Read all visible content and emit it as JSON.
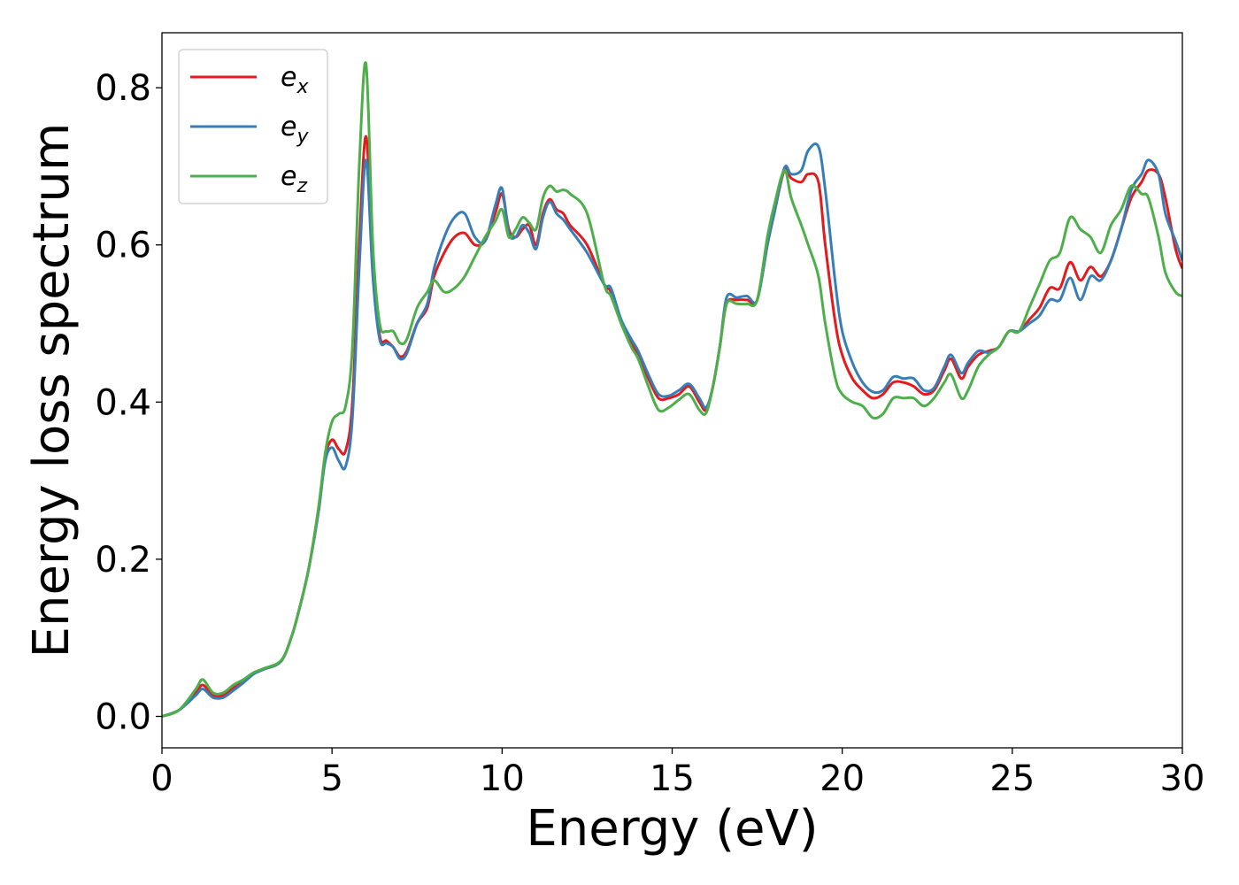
{
  "chart_data": {
    "type": "line",
    "title": "",
    "xlabel": "Energy (eV)",
    "ylabel": "Energy loss spectrum",
    "xlim": [
      0,
      30
    ],
    "ylim": [
      -0.04,
      0.87
    ],
    "xticks": [
      0,
      5,
      10,
      15,
      20,
      25,
      30
    ],
    "xtick_labels": [
      "0",
      "5",
      "10",
      "15",
      "20",
      "25",
      "30"
    ],
    "yticks": [
      0.0,
      0.2,
      0.4,
      0.6,
      0.8
    ],
    "ytick_labels": [
      "0.0",
      "0.2",
      "0.4",
      "0.6",
      "0.8"
    ],
    "grid": false,
    "legend_position": "top-left",
    "series": [
      {
        "name": "e_x",
        "legend_base": "e",
        "legend_sub": "x",
        "color": "#e41a1c",
        "x": [
          0,
          0.5,
          1.0,
          1.2,
          1.5,
          1.8,
          2.1,
          2.4,
          2.7,
          3.0,
          3.5,
          3.8,
          4.0,
          4.3,
          4.6,
          4.8,
          5.0,
          5.2,
          5.4,
          5.6,
          5.8,
          6.0,
          6.2,
          6.4,
          6.6,
          6.8,
          7.0,
          7.2,
          7.5,
          7.8,
          8.0,
          8.3,
          8.6,
          8.9,
          9.2,
          9.5,
          9.8,
          10.0,
          10.2,
          10.4,
          10.6,
          10.8,
          11.0,
          11.2,
          11.4,
          11.6,
          11.8,
          12.0,
          12.5,
          13.0,
          13.2,
          13.5,
          13.8,
          14.0,
          14.3,
          14.6,
          14.9,
          15.2,
          15.5,
          15.8,
          16.0,
          16.2,
          16.4,
          16.6,
          16.9,
          17.2,
          17.5,
          17.8,
          18.0,
          18.3,
          18.5,
          18.8,
          19.0,
          19.3,
          19.5,
          19.8,
          20.0,
          20.3,
          20.6,
          20.9,
          21.2,
          21.5,
          21.8,
          22.1,
          22.4,
          22.7,
          23.0,
          23.2,
          23.5,
          23.7,
          24.0,
          24.3,
          24.6,
          24.9,
          25.2,
          25.5,
          25.8,
          26.1,
          26.4,
          26.7,
          27.0,
          27.3,
          27.6,
          27.9,
          28.2,
          28.5,
          28.8,
          29.0,
          29.3,
          29.5,
          29.8,
          30.0
        ],
        "y": [
          0.0,
          0.008,
          0.03,
          0.04,
          0.027,
          0.027,
          0.036,
          0.045,
          0.055,
          0.06,
          0.07,
          0.1,
          0.13,
          0.185,
          0.26,
          0.33,
          0.352,
          0.34,
          0.338,
          0.4,
          0.6,
          0.738,
          0.58,
          0.485,
          0.478,
          0.47,
          0.458,
          0.465,
          0.5,
          0.52,
          0.56,
          0.59,
          0.61,
          0.615,
          0.6,
          0.605,
          0.64,
          0.665,
          0.62,
          0.61,
          0.62,
          0.625,
          0.6,
          0.64,
          0.658,
          0.645,
          0.64,
          0.625,
          0.6,
          0.55,
          0.54,
          0.5,
          0.475,
          0.46,
          0.43,
          0.405,
          0.405,
          0.41,
          0.42,
          0.4,
          0.39,
          0.42,
          0.47,
          0.525,
          0.53,
          0.53,
          0.53,
          0.6,
          0.64,
          0.695,
          0.685,
          0.68,
          0.69,
          0.68,
          0.6,
          0.5,
          0.46,
          0.43,
          0.415,
          0.405,
          0.41,
          0.425,
          0.425,
          0.42,
          0.41,
          0.415,
          0.44,
          0.455,
          0.43,
          0.445,
          0.46,
          0.465,
          0.47,
          0.49,
          0.49,
          0.505,
          0.52,
          0.545,
          0.545,
          0.578,
          0.555,
          0.572,
          0.56,
          0.58,
          0.62,
          0.66,
          0.68,
          0.695,
          0.69,
          0.66,
          0.595,
          0.57
        ]
      },
      {
        "name": "e_y",
        "legend_base": "e",
        "legend_sub": "y",
        "color": "#377eb8",
        "x": [
          0,
          0.5,
          1.0,
          1.2,
          1.5,
          1.8,
          2.1,
          2.4,
          2.7,
          3.0,
          3.5,
          3.8,
          4.0,
          4.3,
          4.6,
          4.8,
          5.0,
          5.2,
          5.4,
          5.6,
          5.8,
          6.0,
          6.2,
          6.4,
          6.6,
          6.8,
          7.0,
          7.2,
          7.5,
          7.8,
          8.0,
          8.3,
          8.6,
          8.9,
          9.2,
          9.5,
          9.8,
          10.0,
          10.2,
          10.4,
          10.6,
          10.8,
          11.0,
          11.2,
          11.4,
          11.6,
          11.8,
          12.0,
          12.5,
          13.0,
          13.2,
          13.5,
          13.8,
          14.0,
          14.3,
          14.6,
          14.9,
          15.2,
          15.5,
          15.8,
          16.0,
          16.2,
          16.4,
          16.6,
          16.9,
          17.2,
          17.5,
          17.8,
          18.0,
          18.3,
          18.5,
          18.8,
          19.0,
          19.3,
          19.5,
          19.8,
          20.0,
          20.3,
          20.6,
          20.9,
          21.2,
          21.5,
          21.8,
          22.1,
          22.4,
          22.7,
          23.0,
          23.2,
          23.5,
          23.7,
          24.0,
          24.3,
          24.6,
          24.9,
          25.2,
          25.5,
          25.8,
          26.1,
          26.4,
          26.7,
          27.0,
          27.3,
          27.6,
          27.9,
          28.2,
          28.5,
          28.8,
          29.0,
          29.3,
          29.5,
          29.8,
          30.0
        ],
        "y": [
          0.0,
          0.008,
          0.027,
          0.035,
          0.024,
          0.024,
          0.033,
          0.043,
          0.054,
          0.06,
          0.07,
          0.1,
          0.13,
          0.185,
          0.26,
          0.325,
          0.342,
          0.325,
          0.318,
          0.38,
          0.57,
          0.708,
          0.56,
          0.48,
          0.475,
          0.47,
          0.455,
          0.462,
          0.5,
          0.525,
          0.57,
          0.61,
          0.635,
          0.64,
          0.61,
          0.605,
          0.65,
          0.672,
          0.615,
          0.61,
          0.625,
          0.615,
          0.595,
          0.635,
          0.655,
          0.64,
          0.632,
          0.62,
          0.59,
          0.55,
          0.545,
          0.505,
          0.48,
          0.465,
          0.435,
          0.41,
          0.408,
          0.415,
          0.423,
          0.405,
          0.393,
          0.42,
          0.47,
          0.533,
          0.533,
          0.535,
          0.53,
          0.6,
          0.64,
          0.698,
          0.69,
          0.695,
          0.72,
          0.725,
          0.67,
          0.55,
          0.49,
          0.45,
          0.425,
          0.413,
          0.415,
          0.432,
          0.43,
          0.43,
          0.415,
          0.418,
          0.445,
          0.46,
          0.437,
          0.45,
          0.465,
          0.463,
          0.47,
          0.49,
          0.49,
          0.5,
          0.51,
          0.53,
          0.53,
          0.558,
          0.53,
          0.56,
          0.555,
          0.58,
          0.62,
          0.67,
          0.69,
          0.708,
          0.69,
          0.64,
          0.605,
          0.58
        ]
      },
      {
        "name": "e_z",
        "legend_base": "e",
        "legend_sub": "z",
        "color": "#4daf4a",
        "x": [
          0,
          0.5,
          1.0,
          1.2,
          1.5,
          1.8,
          2.1,
          2.4,
          2.7,
          3.0,
          3.5,
          3.8,
          4.0,
          4.3,
          4.6,
          4.8,
          5.0,
          5.2,
          5.4,
          5.6,
          5.8,
          6.0,
          6.2,
          6.4,
          6.6,
          6.8,
          7.0,
          7.2,
          7.5,
          7.8,
          8.0,
          8.3,
          8.6,
          8.9,
          9.2,
          9.5,
          9.8,
          10.0,
          10.2,
          10.4,
          10.6,
          10.8,
          11.0,
          11.2,
          11.4,
          11.6,
          11.8,
          12.0,
          12.5,
          13.0,
          13.2,
          13.5,
          13.8,
          14.0,
          14.3,
          14.6,
          14.9,
          15.2,
          15.5,
          15.8,
          16.0,
          16.2,
          16.4,
          16.6,
          16.9,
          17.2,
          17.5,
          17.8,
          18.0,
          18.3,
          18.5,
          18.8,
          19.0,
          19.3,
          19.5,
          19.8,
          20.0,
          20.3,
          20.6,
          20.9,
          21.2,
          21.5,
          21.8,
          22.1,
          22.4,
          22.7,
          23.0,
          23.2,
          23.5,
          23.7,
          24.0,
          24.3,
          24.6,
          24.9,
          25.2,
          25.5,
          25.8,
          26.1,
          26.4,
          26.7,
          27.0,
          27.3,
          27.6,
          27.9,
          28.2,
          28.5,
          28.8,
          29.0,
          29.3,
          29.5,
          29.8,
          30.0
        ],
        "y": [
          0.0,
          0.008,
          0.035,
          0.047,
          0.03,
          0.03,
          0.04,
          0.047,
          0.056,
          0.061,
          0.071,
          0.1,
          0.13,
          0.185,
          0.265,
          0.335,
          0.375,
          0.385,
          0.395,
          0.47,
          0.7,
          0.83,
          0.6,
          0.5,
          0.49,
          0.49,
          0.475,
          0.48,
          0.52,
          0.54,
          0.555,
          0.54,
          0.545,
          0.56,
          0.585,
          0.61,
          0.63,
          0.645,
          0.61,
          0.62,
          0.635,
          0.628,
          0.62,
          0.66,
          0.675,
          0.668,
          0.67,
          0.665,
          0.64,
          0.55,
          0.535,
          0.5,
          0.47,
          0.455,
          0.42,
          0.39,
          0.393,
          0.403,
          0.41,
          0.39,
          0.386,
          0.42,
          0.47,
          0.525,
          0.525,
          0.525,
          0.53,
          0.61,
          0.65,
          0.695,
          0.66,
          0.625,
          0.6,
          0.56,
          0.5,
          0.43,
          0.41,
          0.4,
          0.395,
          0.38,
          0.385,
          0.405,
          0.405,
          0.405,
          0.395,
          0.405,
          0.425,
          0.435,
          0.405,
          0.415,
          0.445,
          0.46,
          0.47,
          0.49,
          0.49,
          0.52,
          0.55,
          0.58,
          0.59,
          0.635,
          0.62,
          0.61,
          0.59,
          0.625,
          0.645,
          0.675,
          0.665,
          0.66,
          0.61,
          0.565,
          0.54,
          0.535
        ]
      }
    ]
  }
}
